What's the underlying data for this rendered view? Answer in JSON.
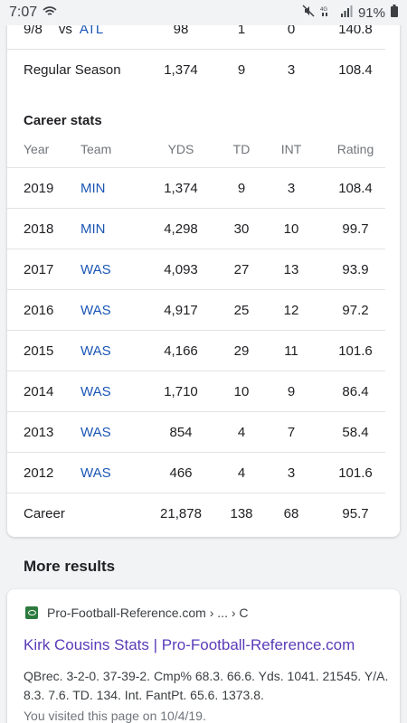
{
  "status_bar": {
    "time": "7:07",
    "battery": "91%"
  },
  "game_log": {
    "row": {
      "date": "9/8",
      "vs": "vs",
      "opponent": "ATL",
      "yds": "98",
      "td": "1",
      "int": "0",
      "rating": "140.8"
    },
    "total": {
      "label": "Regular Season",
      "yds": "1,374",
      "td": "9",
      "int": "3",
      "rating": "108.4"
    }
  },
  "career": {
    "title": "Career stats",
    "headers": {
      "year": "Year",
      "team": "Team",
      "yds": "YDS",
      "td": "TD",
      "int": "INT",
      "rating": "Rating"
    },
    "rows": [
      {
        "year": "2019",
        "team": "MIN",
        "yds": "1,374",
        "td": "9",
        "int": "3",
        "rating": "108.4"
      },
      {
        "year": "2018",
        "team": "MIN",
        "yds": "4,298",
        "td": "30",
        "int": "10",
        "rating": "99.7"
      },
      {
        "year": "2017",
        "team": "WAS",
        "yds": "4,093",
        "td": "27",
        "int": "13",
        "rating": "93.9"
      },
      {
        "year": "2016",
        "team": "WAS",
        "yds": "4,917",
        "td": "25",
        "int": "12",
        "rating": "97.2"
      },
      {
        "year": "2015",
        "team": "WAS",
        "yds": "4,166",
        "td": "29",
        "int": "11",
        "rating": "101.6"
      },
      {
        "year": "2014",
        "team": "WAS",
        "yds": "1,710",
        "td": "10",
        "int": "9",
        "rating": "86.4"
      },
      {
        "year": "2013",
        "team": "WAS",
        "yds": "854",
        "td": "4",
        "int": "7",
        "rating": "58.4"
      },
      {
        "year": "2012",
        "team": "WAS",
        "yds": "466",
        "td": "4",
        "int": "3",
        "rating": "101.6"
      }
    ],
    "total": {
      "label": "Career",
      "yds": "21,878",
      "td": "138",
      "int": "68",
      "rating": "95.7"
    }
  },
  "more_results": {
    "heading": "More results",
    "result": {
      "source": "Pro-Football-Reference.com › ... › C",
      "title": "Kirk Cousins Stats | Pro-Football-Reference.com",
      "snippet": "QBrec. 3-2-0. 37-39-2. Cmp% 68.3. 66.6. Yds. 1041. 21545. Y/A. 8.3. 7.6. TD. 134. Int. FantPt. 65.6. 1373.8.",
      "visited": "You visited this page on 10/4/19."
    }
  },
  "colors": {
    "link_blue": "#1a56b5",
    "visited_purple": "#5a3bb8",
    "favicon_green": "#2c7a3e"
  }
}
